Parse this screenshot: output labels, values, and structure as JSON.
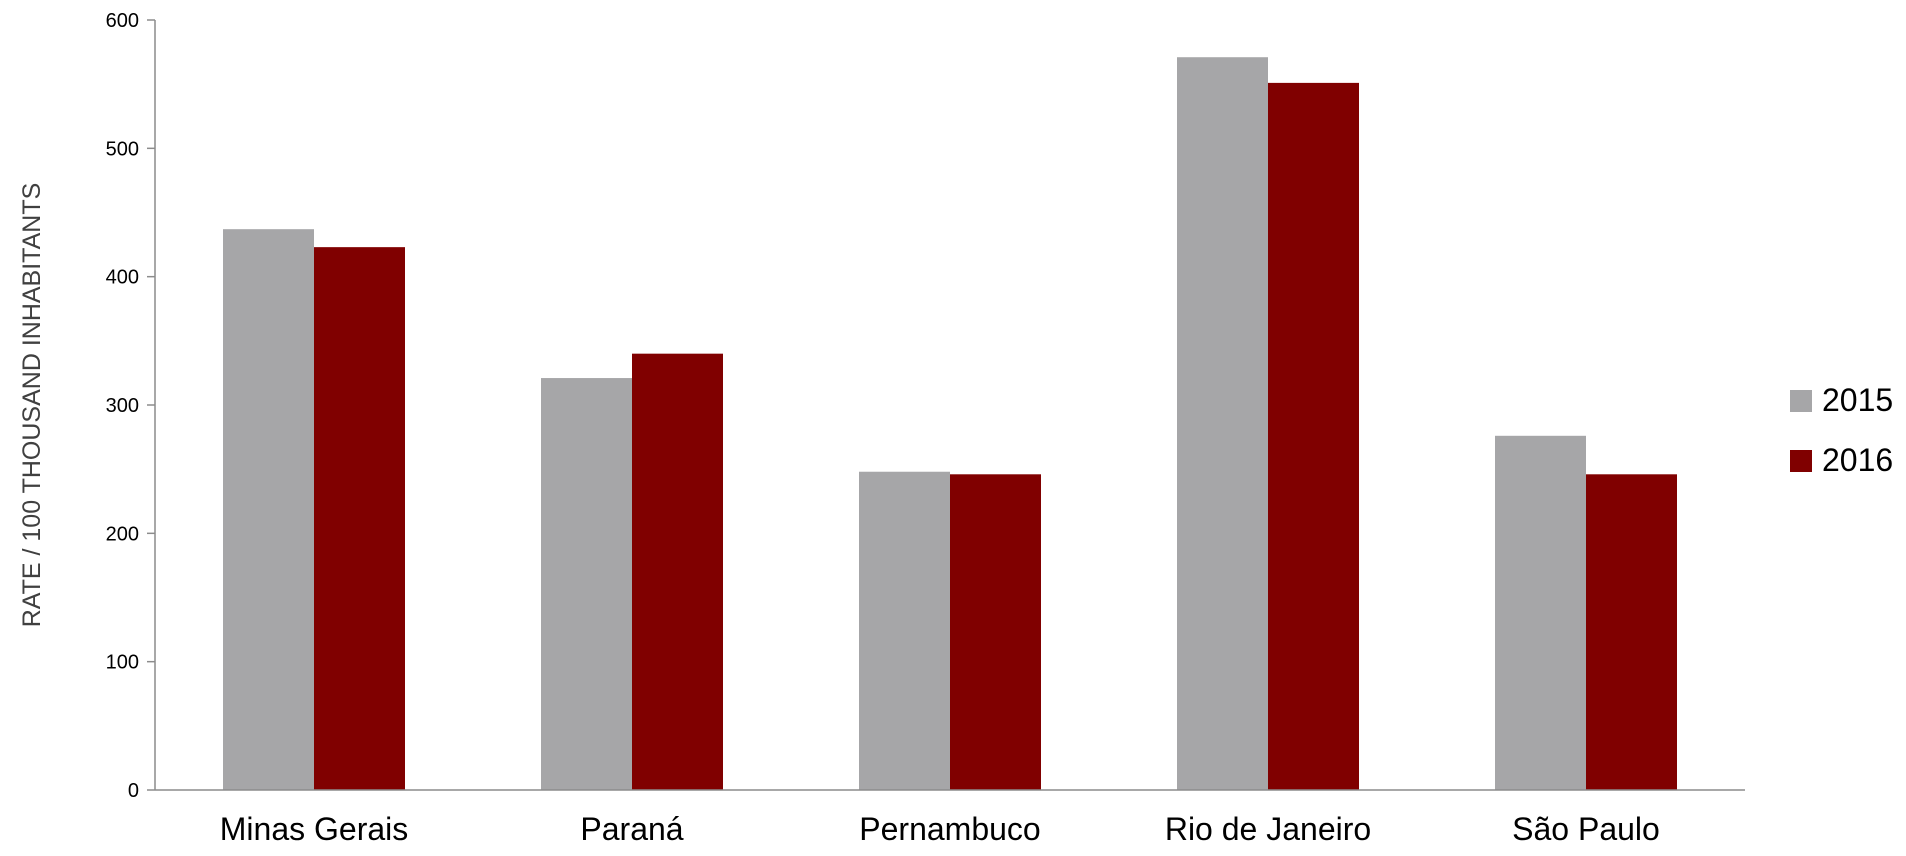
{
  "chart_data": {
    "type": "bar",
    "title": "",
    "xlabel": "",
    "ylabel": "RATE / 100 THOUSAND INHABITANTS",
    "categories": [
      "Minas Gerais",
      "Paraná",
      "Pernambuco",
      "Rio de Janeiro",
      "São Paulo"
    ],
    "series": [
      {
        "name": "2015",
        "color": "#a6a6a8",
        "values": [
          437,
          321,
          248,
          571,
          276
        ]
      },
      {
        "name": "2016",
        "color": "#800000",
        "values": [
          423,
          340,
          246,
          551,
          246
        ]
      }
    ],
    "ylim": [
      0,
      600
    ],
    "yticks": [
      0,
      100,
      200,
      300,
      400,
      500,
      600
    ],
    "grid": false,
    "legend_position": "right"
  }
}
